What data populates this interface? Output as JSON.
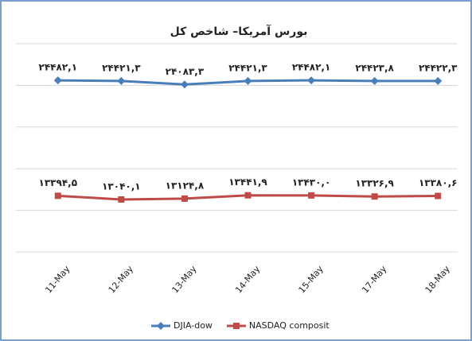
{
  "chart_data": {
    "type": "line",
    "title": "بورس آمریکا– شاخص کل",
    "categories": [
      "11-May",
      "12-May",
      "13-May",
      "14-May",
      "15-May",
      "17-May",
      "18-May"
    ],
    "series": [
      {
        "name": "DJIA-dow",
        "color": "#4a7ebb",
        "marker": "diamond",
        "values": [
          24482.1,
          24421.3,
          24083.3,
          24421.3,
          24482.1,
          24423.8,
          24422.3
        ],
        "value_labels": [
          "۲۴۴۸۲,۱",
          "۲۴۴۲۱,۳",
          "۲۴۰۸۳,۳",
          "۲۴۴۲۱,۳",
          "۲۴۴۸۲,۱",
          "۲۴۴۲۳,۸",
          "۲۴۴۲۲,۳"
        ]
      },
      {
        "name": "NASDAQ composit",
        "color": "#be4b48",
        "marker": "square",
        "values": [
          13394.5,
          13040.1,
          13124.8,
          13441.9,
          13430.0,
          13326.9,
          13380.6
        ],
        "value_labels": [
          "۱۳۳۹۴,۵",
          "۱۳۰۴۰,۱",
          "۱۳۱۲۴,۸",
          "۱۳۴۴۱,۹",
          "۱۳۴۳۰,۰",
          "۱۳۳۲۶,۹",
          "۱۳۳۸۰,۶"
        ]
      }
    ],
    "ylim": [
      8000,
      28000
    ],
    "yticks": [
      8000,
      12000,
      16000,
      20000,
      24000,
      28000
    ],
    "grid": true,
    "legend": "bottom"
  }
}
